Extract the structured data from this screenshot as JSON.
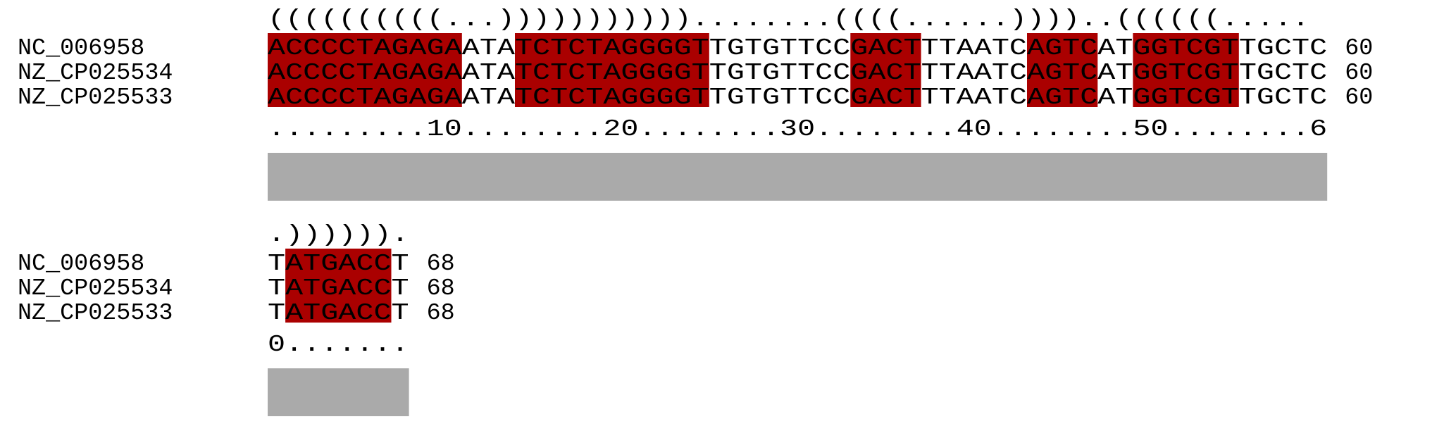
{
  "colors": {
    "paired_fill": "#aa0000",
    "conservation_bar": "#aaaaaa",
    "text": "#000000"
  },
  "blocks": [
    {
      "structure": "((((((((((...)))))))))))........((((......))))..((((((.....",
      "ruler": ".........10........20........30........40........50........6",
      "rows": [
        {
          "name": "NC_006958",
          "sequence": "ACCCCTAGAGAATATCTCTAGGGGTTGTGTTCCGACTTTAATCAGTCATGGTCGTTGCTC",
          "end": "60"
        },
        {
          "name": "NZ_CP025534",
          "sequence": "ACCCCTAGAGAATATCTCTAGGGGTTGTGTTCCGACTTTAATCAGTCATGGTCGTTGCTC",
          "end": "60"
        },
        {
          "name": "NZ_CP025533",
          "sequence": "ACCCCTAGAGAATATCTCTAGGGGTTGTGTTCCGACTTTAATCAGTCATGGTCGTTGCTC",
          "end": "60"
        }
      ],
      "highlights": [
        {
          "start": 1,
          "end": 11
        },
        {
          "start": 15,
          "end": 25
        },
        {
          "start": 34,
          "end": 37
        },
        {
          "start": 44,
          "end": 47
        },
        {
          "start": 50,
          "end": 55
        }
      ],
      "conservation": 1.0
    },
    {
      "structure": ".)))))).",
      "ruler": "0.......",
      "rows": [
        {
          "name": "NC_006958",
          "sequence": "TATGACCT",
          "end": "68"
        },
        {
          "name": "NZ_CP025534",
          "sequence": "TATGACCT",
          "end": "68"
        },
        {
          "name": "NZ_CP025533",
          "sequence": "TATGACCT",
          "end": "68"
        }
      ],
      "highlights": [
        {
          "start": 2,
          "end": 7
        }
      ],
      "conservation": 1.0
    }
  ]
}
